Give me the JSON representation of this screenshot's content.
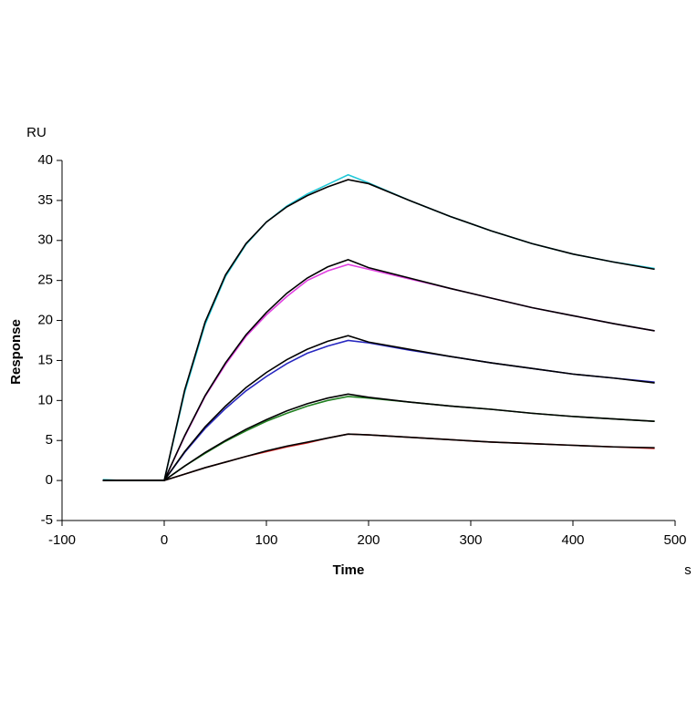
{
  "chart_data": {
    "type": "line",
    "y_unit": "RU",
    "ylabel": "Response",
    "xlabel": "Time",
    "x_unit": "s",
    "x": [
      -60,
      -40,
      -20,
      0,
      20,
      40,
      60,
      80,
      100,
      120,
      140,
      160,
      180,
      200,
      240,
      280,
      320,
      360,
      400,
      440,
      480
    ],
    "series": [
      {
        "color": "#22c8d8",
        "values": [
          0.1,
          0,
          0,
          0,
          11,
          19.5,
          25.5,
          29.5,
          32.3,
          34.3,
          35.8,
          37,
          38.2,
          37.2,
          35,
          33,
          31.2,
          29.6,
          28.3,
          27.3,
          26.5
        ]
      },
      {
        "color": "#e040e0",
        "values": [
          0,
          0,
          0,
          0,
          5.5,
          10.5,
          14.5,
          18,
          20.7,
          23,
          25,
          26.2,
          27,
          26.4,
          25.2,
          24,
          22.8,
          21.6,
          20.6,
          19.6,
          18.7
        ]
      },
      {
        "color": "#2828c0",
        "values": [
          0,
          0,
          0,
          0,
          3.5,
          6.5,
          9,
          11.2,
          13,
          14.6,
          15.9,
          16.8,
          17.5,
          17.2,
          16.3,
          15.5,
          14.7,
          14,
          13.3,
          12.8,
          12.3
        ]
      },
      {
        "color": "#208020",
        "values": [
          0,
          0,
          0,
          0,
          1.8,
          3.4,
          4.9,
          6.2,
          7.4,
          8.4,
          9.3,
          10,
          10.5,
          10.3,
          9.8,
          9.3,
          8.9,
          8.4,
          8,
          7.7,
          7.4
        ]
      },
      {
        "color": "#d02020",
        "values": [
          0,
          0,
          0,
          0,
          0.8,
          1.6,
          2.3,
          3,
          3.6,
          4.2,
          4.7,
          5.3,
          5.8,
          5.7,
          5.4,
          5.1,
          4.8,
          4.6,
          4.4,
          4.2,
          4.0
        ]
      },
      {
        "color": "#000000",
        "values": [
          0,
          0,
          0,
          0,
          11.3,
          19.8,
          25.7,
          29.6,
          32.3,
          34.2,
          35.6,
          36.7,
          37.6,
          37.1,
          35,
          33,
          31.2,
          29.6,
          28.3,
          27.3,
          26.4
        ]
      },
      {
        "color": "#000000",
        "values": [
          0,
          0,
          0,
          0,
          5.6,
          10.6,
          14.7,
          18.2,
          21,
          23.4,
          25.3,
          26.7,
          27.6,
          26.6,
          25.3,
          24,
          22.8,
          21.6,
          20.6,
          19.6,
          18.7
        ]
      },
      {
        "color": "#000000",
        "values": [
          0,
          0,
          0,
          0,
          3.6,
          6.7,
          9.3,
          11.6,
          13.5,
          15.1,
          16.4,
          17.4,
          18.1,
          17.3,
          16.4,
          15.5,
          14.7,
          14,
          13.3,
          12.8,
          12.2
        ]
      },
      {
        "color": "#000000",
        "values": [
          0,
          0,
          0,
          0,
          1.8,
          3.5,
          5,
          6.4,
          7.6,
          8.7,
          9.6,
          10.3,
          10.8,
          10.4,
          9.8,
          9.3,
          8.9,
          8.4,
          8,
          7.7,
          7.4
        ]
      },
      {
        "color": "#000000",
        "values": [
          0,
          0,
          0,
          0,
          0.8,
          1.6,
          2.3,
          3,
          3.7,
          4.3,
          4.8,
          5.3,
          5.8,
          5.7,
          5.4,
          5.1,
          4.8,
          4.6,
          4.4,
          4.2,
          4.1
        ]
      }
    ],
    "xlim": [
      -100,
      500
    ],
    "xticks": [
      -100,
      0,
      100,
      200,
      300,
      400,
      500
    ],
    "ylim": [
      -5,
      40
    ],
    "yticks": [
      -5,
      0,
      5,
      10,
      15,
      20,
      25,
      30,
      35,
      40
    ]
  }
}
